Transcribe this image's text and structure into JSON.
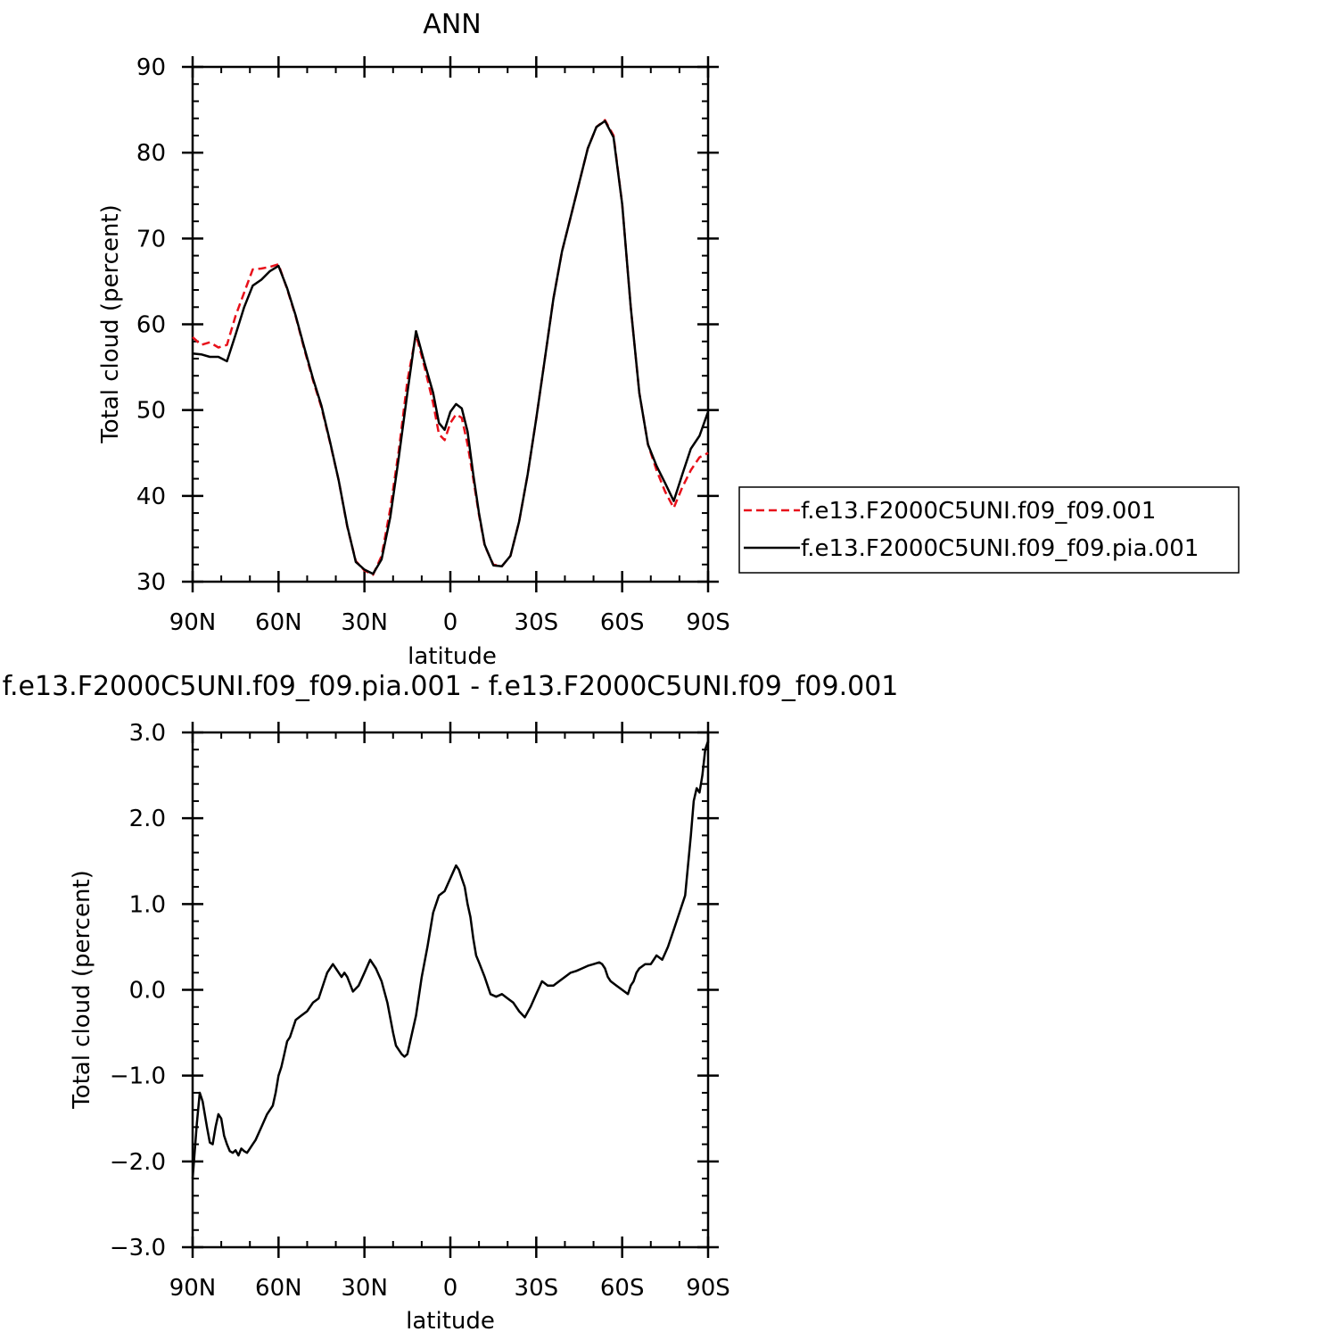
{
  "colors": {
    "control": "#e8101a",
    "test": "#000000",
    "frame": "#000000"
  },
  "chart_data": [
    {
      "type": "line",
      "title": "ANN",
      "xlabel": "latitude",
      "ylabel": "Total cloud (percent)",
      "xlim": [
        90,
        -90
      ],
      "ylim": [
        30,
        90
      ],
      "x_tick_values": [
        90,
        60,
        30,
        0,
        -30,
        -60,
        -90
      ],
      "x_tick_labels": [
        "90N",
        "60N",
        "30N",
        "0",
        "30S",
        "60S",
        "90S"
      ],
      "y_tick_values": [
        30,
        40,
        50,
        60,
        70,
        80,
        90
      ],
      "y_tick_labels": [
        "30",
        "40",
        "50",
        "60",
        "70",
        "80",
        "90"
      ],
      "legend": {
        "placement": "right",
        "entries": [
          "f.e13.F2000C5UNI.f09_f09.001",
          "f.e13.F2000C5UNI.f09_f09.pia.001"
        ]
      },
      "series": [
        {
          "name": "f.e13.F2000C5UNI.f09_f09.001",
          "style": "dashed",
          "color": "#e8101a",
          "x": [
            90,
            87,
            84,
            81,
            78,
            75,
            72,
            69,
            66,
            63,
            60,
            57,
            54,
            51,
            48,
            45,
            42,
            39,
            36,
            33,
            30,
            27,
            24,
            21,
            18,
            15,
            12,
            9,
            6,
            4,
            2,
            0,
            -2,
            -4,
            -6,
            -8,
            -10,
            -12,
            -15,
            -18,
            -21,
            -24,
            -27,
            -30,
            -33,
            -36,
            -39,
            -42,
            -45,
            -48,
            -51,
            -54,
            -57,
            -60,
            -63,
            -66,
            -69,
            -72,
            -75,
            -78,
            -81,
            -84,
            -87,
            -90
          ],
          "y": [
            58.5,
            57.6,
            57.9,
            57.3,
            57.6,
            61.0,
            63.7,
            66.4,
            66.5,
            66.7,
            67.0,
            64.1,
            60.9,
            57.1,
            53.5,
            50.3,
            46.2,
            41.8,
            36.4,
            32.4,
            31.3,
            30.8,
            33.0,
            38.5,
            45.3,
            53.4,
            58.8,
            55.0,
            50.8,
            47.2,
            46.5,
            48.5,
            49.5,
            49.1,
            46.0,
            42.0,
            37.8,
            34.2,
            32.0,
            31.8,
            33.0,
            37.0,
            42.5,
            49.0,
            56.0,
            63.0,
            68.5,
            72.5,
            76.5,
            80.5,
            83.0,
            83.8,
            82.0,
            74.0,
            62.0,
            52.0,
            46.0,
            43.0,
            40.5,
            38.6,
            41.0,
            43.0,
            44.5,
            45.0
          ]
        },
        {
          "name": "f.e13.F2000C5UNI.f09_f09.pia.001",
          "style": "solid",
          "color": "#000000",
          "x": [
            90,
            87,
            84,
            81,
            78,
            75,
            72,
            69,
            66,
            63,
            60,
            57,
            54,
            51,
            48,
            45,
            42,
            39,
            36,
            33,
            30,
            27,
            24,
            21,
            18,
            15,
            12,
            9,
            6,
            4,
            2,
            0,
            -2,
            -4,
            -6,
            -8,
            -10,
            -12,
            -15,
            -18,
            -21,
            -24,
            -27,
            -30,
            -33,
            -36,
            -39,
            -42,
            -45,
            -48,
            -51,
            -54,
            -57,
            -60,
            -63,
            -66,
            -69,
            -72,
            -75,
            -78,
            -81,
            -84,
            -87,
            -90
          ],
          "y": [
            56.6,
            56.5,
            56.2,
            56.2,
            55.7,
            58.8,
            62.0,
            64.5,
            65.2,
            66.2,
            66.8,
            64.2,
            61.0,
            57.3,
            53.7,
            50.5,
            46.3,
            41.8,
            36.5,
            32.3,
            31.4,
            30.9,
            32.6,
            37.5,
            44.5,
            52.0,
            59.2,
            55.5,
            52.0,
            48.5,
            47.7,
            49.8,
            50.7,
            50.2,
            47.5,
            42.5,
            38.0,
            34.3,
            31.9,
            31.8,
            33.0,
            37.0,
            42.5,
            49.0,
            56.0,
            63.0,
            68.5,
            72.5,
            76.5,
            80.5,
            83.0,
            83.7,
            81.8,
            74.0,
            62.0,
            52.0,
            46.0,
            43.5,
            41.5,
            39.4,
            42.5,
            45.5,
            47.0,
            49.8
          ]
        }
      ]
    },
    {
      "type": "line",
      "title": "f.e13.F2000C5UNI.f09_f09.pia.001 - f.e13.F2000C5UNI.f09_f09.001",
      "xlabel": "latitude",
      "ylabel": "Total cloud (percent)",
      "xlim": [
        90,
        -90
      ],
      "ylim": [
        -3.0,
        3.0
      ],
      "x_tick_values": [
        90,
        60,
        30,
        0,
        -30,
        -60,
        -90
      ],
      "x_tick_labels": [
        "90N",
        "60N",
        "30N",
        "0",
        "30S",
        "60S",
        "90S"
      ],
      "y_tick_values": [
        -3.0,
        -2.0,
        -1.0,
        0.0,
        1.0,
        2.0,
        3.0
      ],
      "y_tick_labels": [
        "−3.0",
        "−2.0",
        "−1.0",
        "0.0",
        "1.0",
        "2.0",
        "3.0"
      ],
      "series": [
        {
          "style": "solid",
          "color": "#000000",
          "x": [
            90,
            88.5,
            87.5,
            86.5,
            85,
            84,
            83,
            82,
            81,
            80,
            79,
            78,
            77,
            76,
            75,
            74,
            73,
            72,
            71,
            70,
            69,
            68,
            66,
            64,
            62,
            61,
            60,
            59,
            58,
            57,
            56,
            54,
            52,
            50,
            48,
            46,
            45,
            44,
            43,
            42,
            41,
            40,
            39,
            38,
            37,
            36,
            34,
            32,
            30,
            28,
            26,
            24,
            22,
            20,
            19,
            18,
            17,
            16,
            15,
            14,
            12,
            10,
            8,
            6,
            4,
            2,
            0,
            -2,
            -3,
            -4,
            -5,
            -6,
            -7,
            -8,
            -9,
            -10,
            -12,
            -14,
            -16,
            -18,
            -20,
            -22,
            -24,
            -26,
            -28,
            -30,
            -32,
            -34,
            -36,
            -38,
            -40,
            -42,
            -44,
            -46,
            -48,
            -50,
            -52,
            -53,
            -54,
            -55,
            -56,
            -58,
            -60,
            -62,
            -63,
            -64,
            -65,
            -66,
            -68,
            -70,
            -72,
            -74,
            -76,
            -78,
            -80,
            -82,
            -84,
            -85,
            -86,
            -87,
            -88,
            -89,
            -90
          ],
          "y": [
            -2.2,
            -1.55,
            -1.2,
            -1.3,
            -1.6,
            -1.78,
            -1.8,
            -1.6,
            -1.45,
            -1.5,
            -1.7,
            -1.8,
            -1.88,
            -1.9,
            -1.87,
            -1.93,
            -1.85,
            -1.88,
            -1.9,
            -1.85,
            -1.8,
            -1.75,
            -1.6,
            -1.45,
            -1.35,
            -1.2,
            -1.0,
            -0.9,
            -0.75,
            -0.6,
            -0.55,
            -0.35,
            -0.3,
            -0.25,
            -0.15,
            -0.1,
            0.0,
            0.1,
            0.2,
            0.25,
            0.3,
            0.25,
            0.2,
            0.15,
            0.2,
            0.15,
            -0.02,
            0.05,
            0.2,
            0.35,
            0.25,
            0.1,
            -0.15,
            -0.5,
            -0.65,
            -0.7,
            -0.75,
            -0.78,
            -0.75,
            -0.6,
            -0.3,
            0.15,
            0.5,
            0.9,
            1.1,
            1.15,
            1.3,
            1.45,
            1.4,
            1.3,
            1.2,
            1.0,
            0.85,
            0.6,
            0.4,
            0.32,
            0.15,
            -0.05,
            -0.08,
            -0.05,
            -0.1,
            -0.15,
            -0.25,
            -0.32,
            -0.2,
            -0.05,
            0.1,
            0.05,
            0.05,
            0.1,
            0.15,
            0.2,
            0.22,
            0.25,
            0.28,
            0.3,
            0.32,
            0.3,
            0.25,
            0.15,
            0.1,
            0.05,
            0.0,
            -0.05,
            0.05,
            0.1,
            0.2,
            0.25,
            0.3,
            0.3,
            0.4,
            0.35,
            0.5,
            0.7,
            0.9,
            1.1,
            1.8,
            2.2,
            2.35,
            2.3,
            2.5,
            2.8,
            2.9
          ]
        }
      ]
    }
  ]
}
